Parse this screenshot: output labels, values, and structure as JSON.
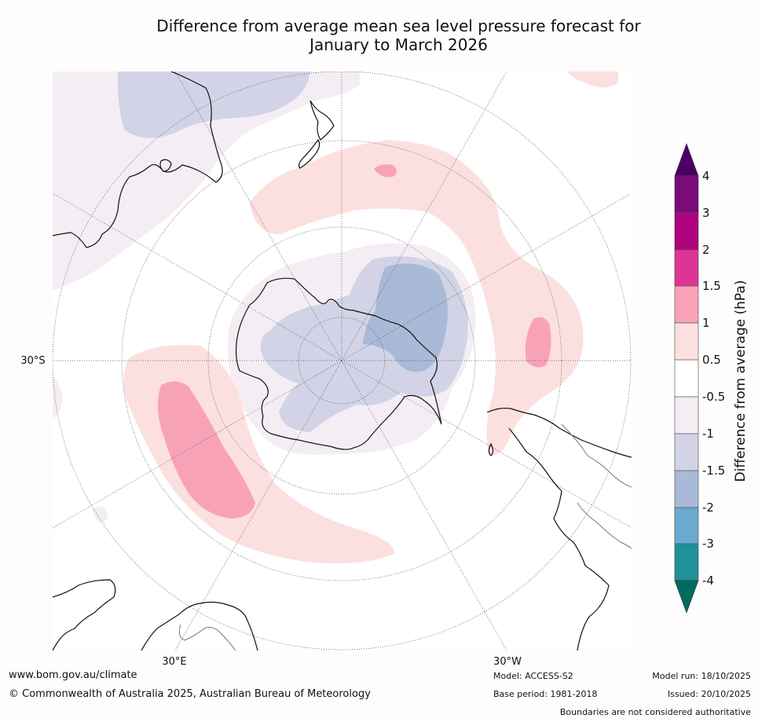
{
  "title": {
    "line1": "Difference from average mean sea level pressure forecast for",
    "line2": "January to March 2026"
  },
  "map": {
    "projection": "south-polar-stereographic",
    "labels": {
      "lat_left": "30°S",
      "lon_bottom_left": "30°E",
      "lon_bottom_right": "30°W"
    },
    "colors": {
      "ocean": "#ffffff",
      "neg_0_5_to_1": "#f4eef4",
      "neg_1_to_1_5": "#d2d3e6",
      "neg_1_5_to_2": "#a8bad7",
      "pos_0_5_to_1": "#fbe0df",
      "pos_1_to_1_5": "#f8a2b8",
      "coast": "#111111",
      "border": "#777777"
    }
  },
  "colorbar": {
    "label": "Difference from average (hPa)",
    "tick_labels": [
      "4",
      "3",
      "2",
      "1.5",
      "1",
      "0.5",
      "-0.5",
      "-1",
      "-1.5",
      "-2",
      "-3",
      "-4"
    ],
    "colors": {
      "over": "#4a0065",
      "c_3_4": "#7b0a7a",
      "c_2_3": "#b0047e",
      "c_1_5_2": "#dd3597",
      "c_1_1_5": "#f8a2b8",
      "c_0_5_1": "#fbe0df",
      "c_m0_5_0_5": "#ffffff",
      "c_m1_m0_5": "#f4eef4",
      "c_m1_5_m1": "#d2d3e6",
      "c_m2_m1_5": "#a8bad7",
      "c_m3_m2": "#6aaad0",
      "c_m4_m3": "#20909a",
      "under": "#006b5c"
    }
  },
  "footer": {
    "website": "www.bom.gov.au/climate",
    "copyright": "© Commonwealth of Australia 2025, Australian Bureau of Meteorology",
    "model": "Model: ACCESS-S2",
    "base_period": "Base period: 1981-2018",
    "model_run": "Model run: 18/10/2025",
    "issued": "Issued: 20/10/2025",
    "disclaimer": "Boundaries are not considered authoritative"
  }
}
